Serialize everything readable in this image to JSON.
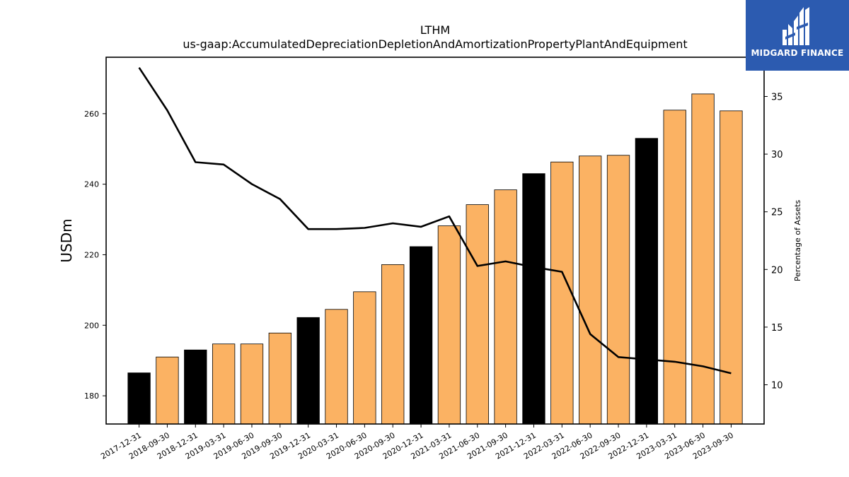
{
  "chart_data": {
    "type": "bar",
    "title": "LTHM",
    "subtitle": "us-gaap:AccumulatedDepreciationDepletionAndAmortizationPropertyPlantAndEquipment",
    "ylabel": "USDm",
    "y2label": "Percentage of Assets",
    "categories": [
      "2017-12-31",
      "2018-09-30",
      "2018-12-31",
      "2019-03-31",
      "2019-06-30",
      "2019-09-30",
      "2019-12-31",
      "2020-03-31",
      "2020-06-30",
      "2020-09-30",
      "2020-12-31",
      "2021-03-31",
      "2021-06-30",
      "2021-09-30",
      "2021-12-31",
      "2022-03-31",
      "2022-06-30",
      "2022-09-30",
      "2022-12-31",
      "2023-03-31",
      "2023-06-30",
      "2023-09-30"
    ],
    "series": [
      {
        "type": "bar",
        "values": [
          186.5,
          191.0,
          193.0,
          194.7,
          194.7,
          197.8,
          202.2,
          204.5,
          209.5,
          217.2,
          222.3,
          228.2,
          234.2,
          238.4,
          243.0,
          246.3,
          248.0,
          248.2,
          253.0,
          261.0,
          265.6,
          260.8
        ],
        "colors": [
          "#000000",
          "#fbb263",
          "#000000",
          "#fbb263",
          "#fbb263",
          "#fbb263",
          "#000000",
          "#fbb263",
          "#fbb263",
          "#fbb263",
          "#000000",
          "#fbb263",
          "#fbb263",
          "#fbb263",
          "#000000",
          "#fbb263",
          "#fbb263",
          "#fbb263",
          "#000000",
          "#fbb263",
          "#fbb263",
          "#fbb263"
        ]
      },
      {
        "type": "line",
        "axis": "right",
        "color": "#000000",
        "values": [
          37.5,
          33.8,
          29.3,
          29.1,
          27.4,
          26.1,
          23.5,
          23.5,
          23.6,
          24.0,
          23.7,
          24.6,
          20.3,
          20.7,
          20.2,
          19.8,
          14.4,
          12.4,
          12.2,
          12.0,
          11.6,
          11.0
        ]
      }
    ],
    "ylim": [
      172,
      276
    ],
    "yticks": [
      180,
      200,
      220,
      240,
      260
    ],
    "y2lim": [
      6.6,
      38.4
    ],
    "y2ticks": [
      10,
      15,
      20,
      25,
      30,
      35
    ],
    "grid": false,
    "legend": "none"
  },
  "logo": {
    "text": "MIDGARD FINANCE"
  }
}
